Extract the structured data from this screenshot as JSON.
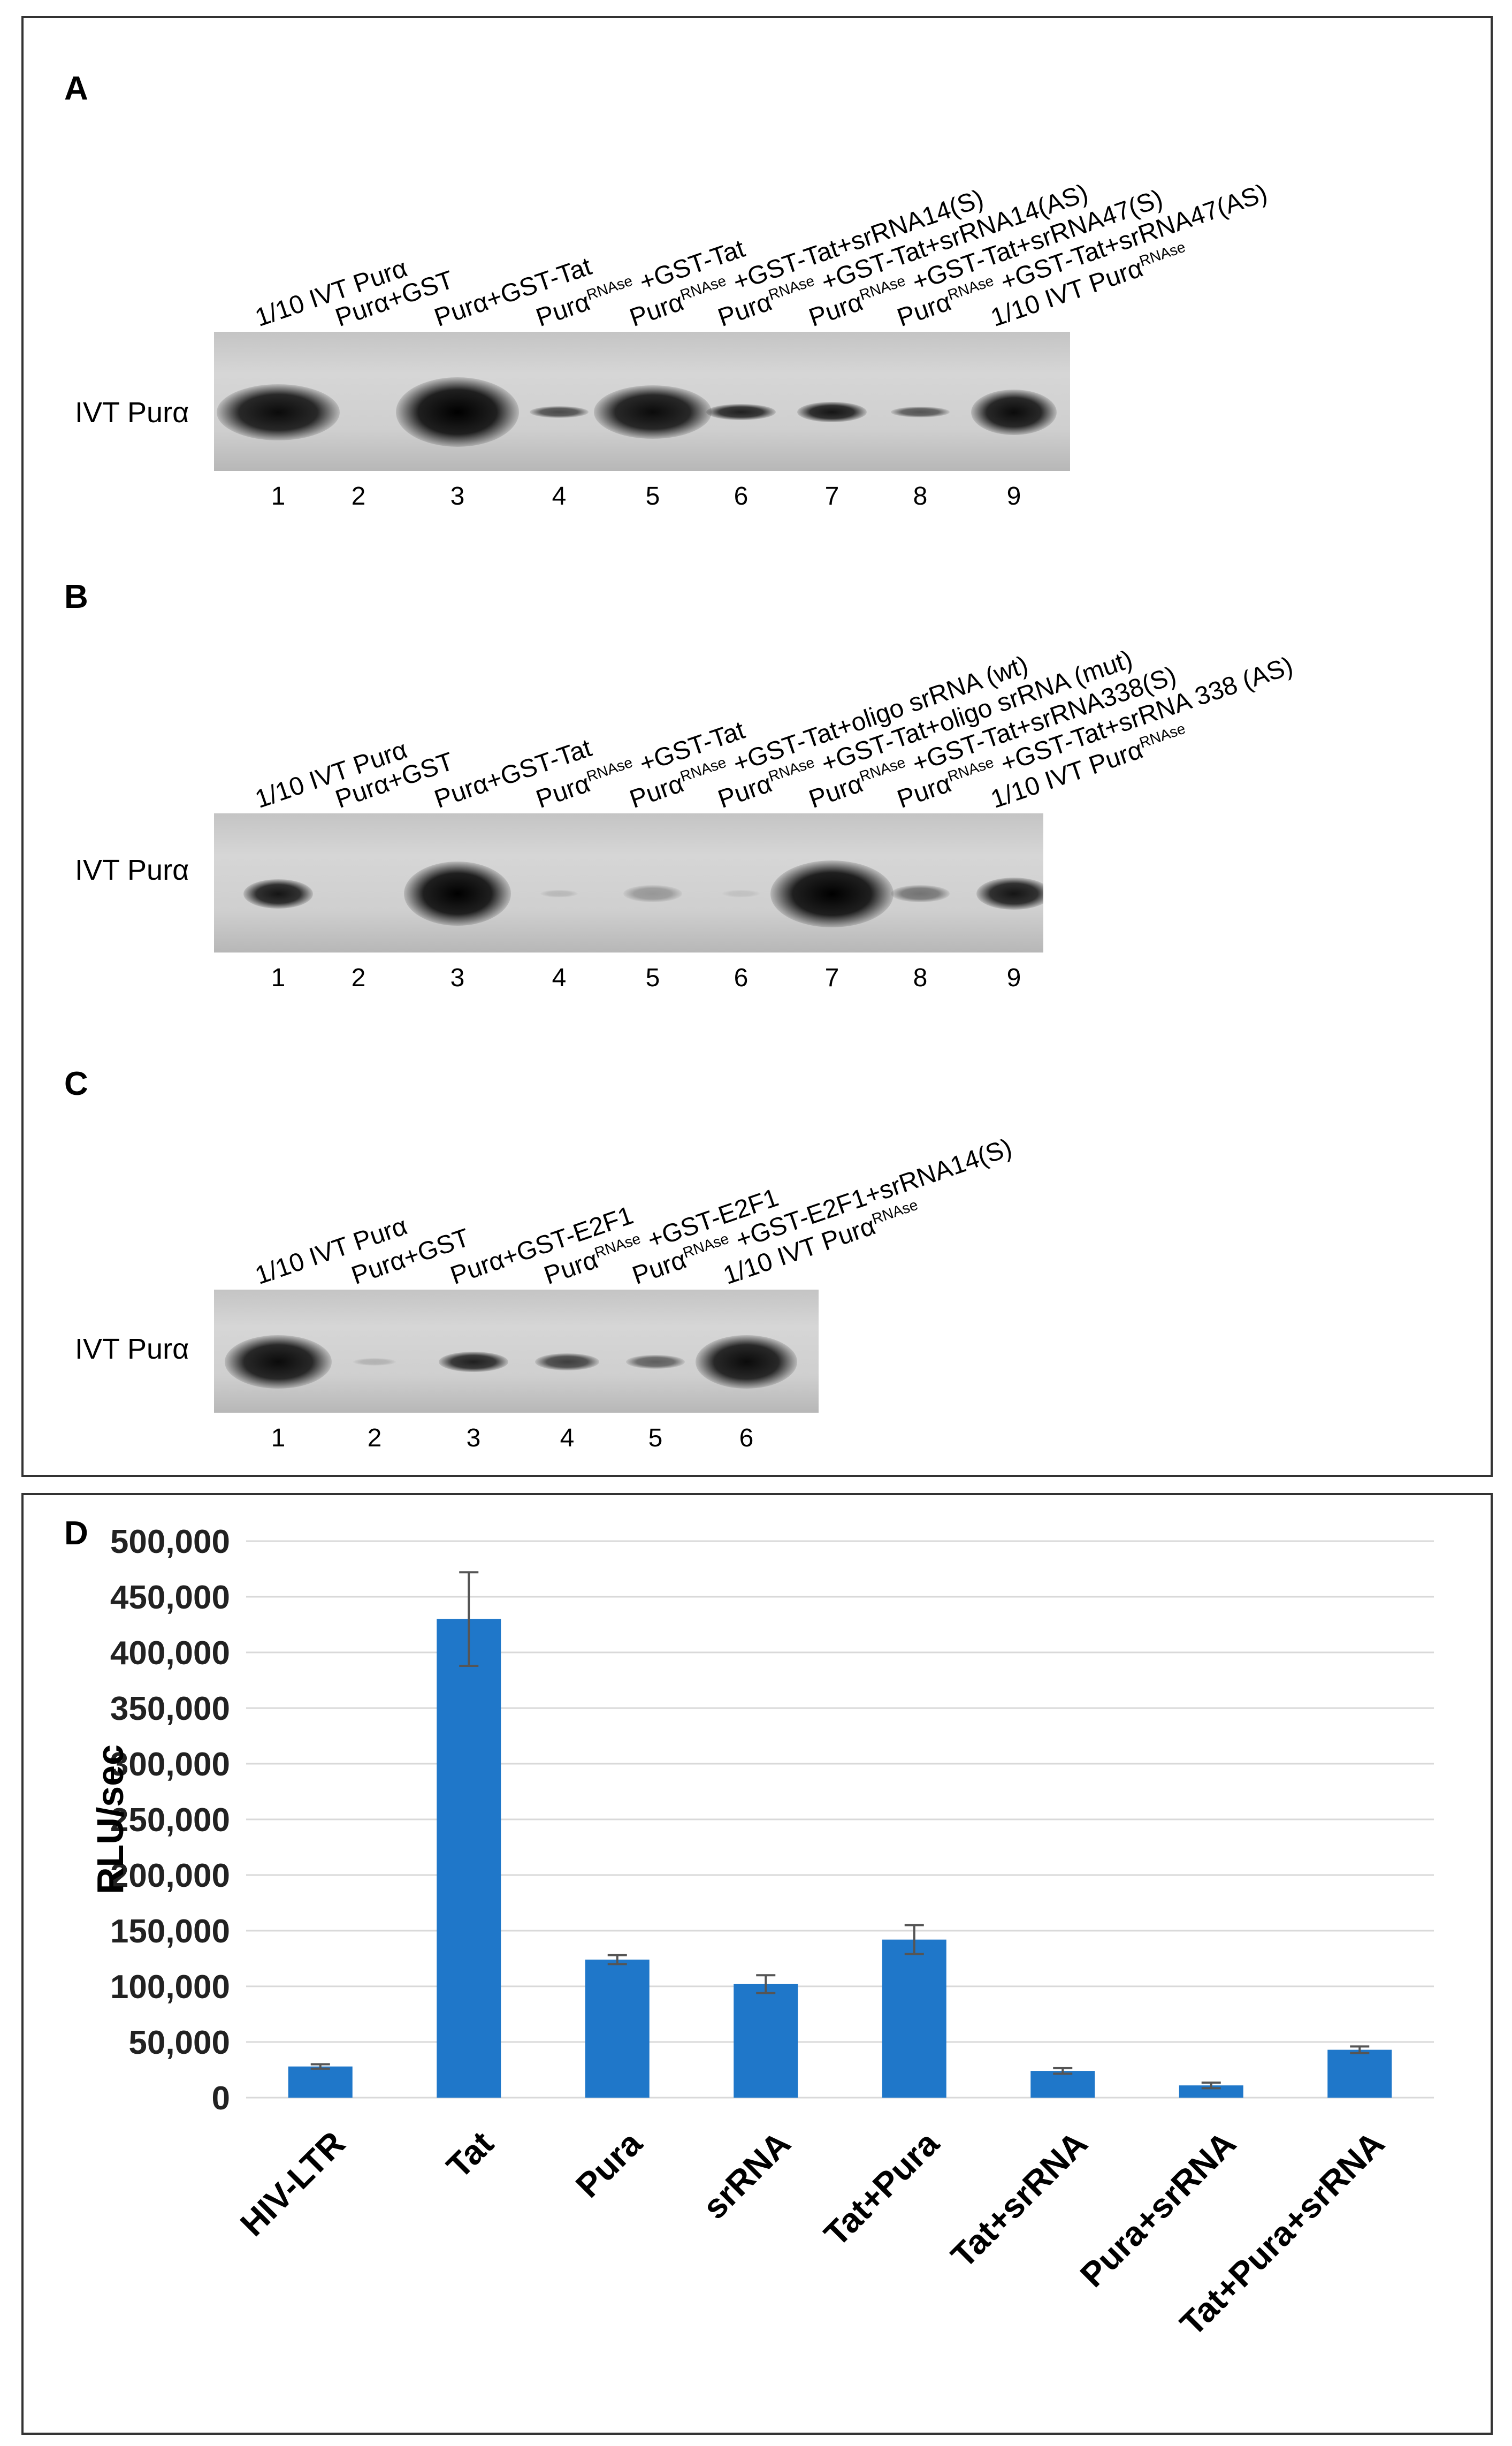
{
  "panels": {
    "A": {
      "letter": "A",
      "gel_label": "IVT Purα",
      "lanes": [
        {
          "num": "1",
          "label": "1/10 IVT Purα",
          "sup": "",
          "suffix": ""
        },
        {
          "num": "2",
          "label": "Purα+GST",
          "sup": "",
          "suffix": ""
        },
        {
          "num": "3",
          "label": "Purα+GST-Tat",
          "sup": "",
          "suffix": ""
        },
        {
          "num": "4",
          "label": "Purα",
          "sup": "RNAse",
          "suffix": " +GST-Tat"
        },
        {
          "num": "5",
          "label": "Purα",
          "sup": "RNAse",
          "suffix": " +GST-Tat+srRNA14(S)"
        },
        {
          "num": "6",
          "label": "Purα",
          "sup": "RNAse",
          "suffix": " +GST-Tat+srRNA14(AS)"
        },
        {
          "num": "7",
          "label": "Purα",
          "sup": "RNAse",
          "suffix": " +GST-Tat+srRNA47(S)"
        },
        {
          "num": "8",
          "label": "Purα",
          "sup": "RNAse",
          "suffix": " +GST-Tat+srRNA47(AS)"
        },
        {
          "num": "9",
          "label": "1/10 IVT Purα",
          "sup": "RNAse",
          "suffix": ""
        }
      ]
    },
    "B": {
      "letter": "B",
      "gel_label": "IVT Purα",
      "lanes": [
        {
          "num": "1",
          "label": "1/10 IVT Purα",
          "sup": "",
          "suffix": ""
        },
        {
          "num": "2",
          "label": "Purα+GST",
          "sup": "",
          "suffix": ""
        },
        {
          "num": "3",
          "label": "Purα+GST-Tat",
          "sup": "",
          "suffix": ""
        },
        {
          "num": "4",
          "label": "Purα",
          "sup": "RNAse",
          "suffix": " +GST-Tat"
        },
        {
          "num": "5",
          "label": "Purα",
          "sup": "RNAse",
          "suffix": " +GST-Tat+oligo srRNA (wt)"
        },
        {
          "num": "6",
          "label": "Purα",
          "sup": "RNAse",
          "suffix": " +GST-Tat+oligo srRNA (mut)"
        },
        {
          "num": "7",
          "label": "Purα",
          "sup": "RNAse",
          "suffix": " +GST-Tat+srRNA338(S)"
        },
        {
          "num": "8",
          "label": "Purα",
          "sup": "RNAse",
          "suffix": " +GST-Tat+srRNA 338 (AS)"
        },
        {
          "num": "9",
          "label": "1/10 IVT Purα",
          "sup": "RNAse",
          "suffix": ""
        }
      ]
    },
    "C": {
      "letter": "C",
      "gel_label": "IVT Purα",
      "lanes": [
        {
          "num": "1",
          "label": "1/10 IVT Purα",
          "sup": "",
          "suffix": ""
        },
        {
          "num": "2",
          "label": "Purα+GST",
          "sup": "",
          "suffix": ""
        },
        {
          "num": "3",
          "label": "Purα+GST-E2F1",
          "sup": "",
          "suffix": ""
        },
        {
          "num": "4",
          "label": "Purα",
          "sup": "RNAse",
          "suffix": " +GST-E2F1"
        },
        {
          "num": "5",
          "label": "Purα",
          "sup": "RNAse",
          "suffix": " +GST-E2F1+srRNA14(S)"
        },
        {
          "num": "6",
          "label": "1/10 IVT Purα",
          "sup": "RNAse",
          "suffix": ""
        }
      ]
    }
  },
  "chart_letter": "D",
  "chart_data": {
    "type": "bar",
    "title": "",
    "xlabel": "",
    "ylabel": "RLU/sec",
    "ylim": [
      0,
      500000
    ],
    "yticks": [
      "0",
      "50,000",
      "100,000",
      "150,000",
      "200,000",
      "250,000",
      "300,000",
      "350,000",
      "400,000",
      "450,000",
      "500,000"
    ],
    "categories": [
      "HIV-LTR",
      "Tat",
      "Pura",
      "srRNA",
      "Tat+Pura",
      "Tat+srRNA",
      "Pura+srRNA",
      "Tat+Pura+srRNA"
    ],
    "values": [
      28000,
      430000,
      124000,
      102000,
      142000,
      24000,
      11000,
      43000
    ],
    "errors": [
      2000,
      42000,
      4000,
      8000,
      13000,
      2500,
      2500,
      3000
    ],
    "bar_color": "#1f77c9"
  }
}
